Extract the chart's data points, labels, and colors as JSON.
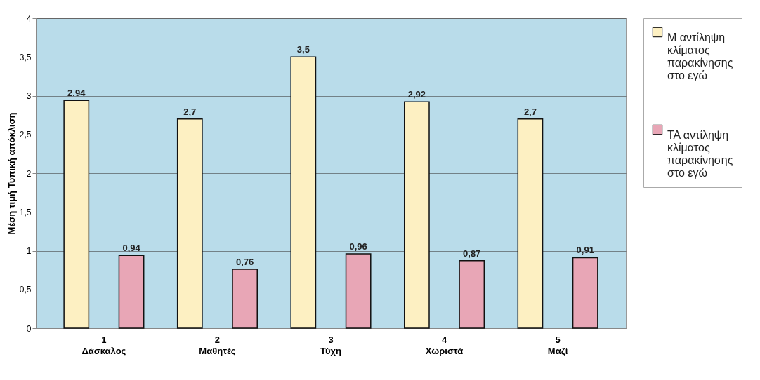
{
  "chart_data": {
    "type": "bar",
    "ylabel": "Μέση τιμή Τυπική απόκλιση",
    "categories": [
      "1\nΔάσκαλος",
      "2\nΜαθητές",
      "3\nΤύχη",
      "4\nΧωριστά",
      "5\nΜαζί"
    ],
    "series": [
      {
        "name": "Μ αντίληψη κλίματος παρακίνησης στο εγώ",
        "color": "#fdf0c2",
        "values": [
          2.94,
          2.7,
          3.5,
          2.92,
          2.7
        ],
        "value_labels": [
          "2.94",
          "2,7",
          "3,5",
          "2,92",
          "2,7"
        ]
      },
      {
        "name": "ΤΑ αντίληψη κλίματος παρακίνησης στο εγώ",
        "color": "#e8a6b6",
        "values": [
          0.94,
          0.76,
          0.96,
          0.87,
          0.91
        ],
        "value_labels": [
          "0,94",
          "0,76",
          "0,96",
          "0,87",
          "0,91"
        ]
      }
    ],
    "ylim": [
      0,
      4
    ],
    "yticks": [
      0,
      {
        "value": 0.5,
        "label": "0,5"
      },
      1,
      {
        "value": 1.5,
        "label": "1,5"
      },
      2,
      {
        "value": 2.5,
        "label": "2,5"
      },
      3,
      {
        "value": 3.5,
        "label": "3,5"
      },
      4
    ],
    "grid": "y",
    "legend": "right"
  }
}
